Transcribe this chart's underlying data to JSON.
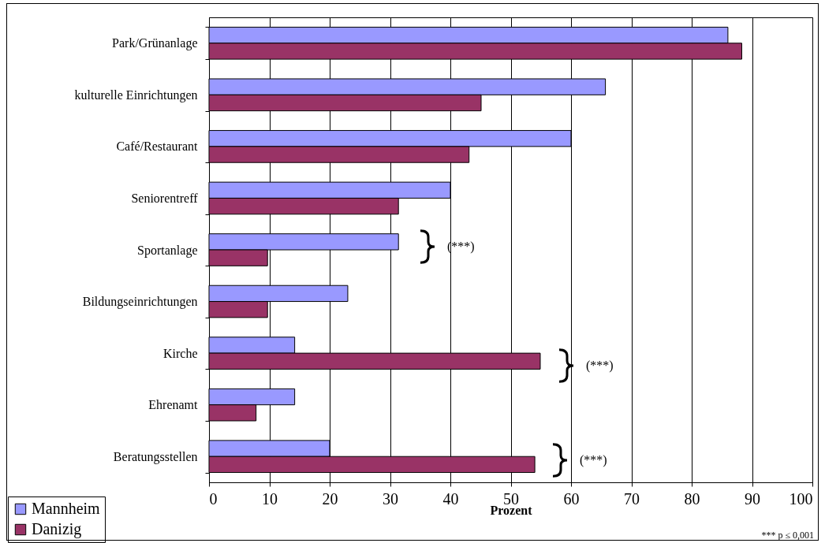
{
  "chart_data": {
    "type": "bar",
    "orientation": "horizontal",
    "xlabel": "Prozent",
    "categories": [
      "Park/Grünanlage",
      "kulturelle Einrichtungen",
      "Café/Restaurant",
      "Seniorentreff",
      "Sportanlage",
      "Bildungseinrichtungen",
      "Kirche",
      "Ehrenamt",
      "Beratungsstellen"
    ],
    "series": [
      {
        "name": "Mannheim",
        "color": "#9999ff",
        "values": [
          86,
          65.7,
          60,
          40,
          31.4,
          23,
          14.2,
          14.2,
          20
        ]
      },
      {
        "name": "Danizig",
        "color": "#993366",
        "values": [
          88.3,
          45.1,
          43.1,
          31.4,
          9.7,
          9.7,
          54.9,
          7.8,
          54
        ]
      }
    ],
    "xlim": [
      0,
      100
    ],
    "xticks": [
      0,
      10,
      20,
      30,
      40,
      50,
      60,
      70,
      80,
      90,
      100
    ],
    "grid": "x",
    "legend": "bottom left",
    "annotations": [
      "(***)",
      "(***)",
      "(***)",
      "*** p ≤  0,001"
    ]
  }
}
